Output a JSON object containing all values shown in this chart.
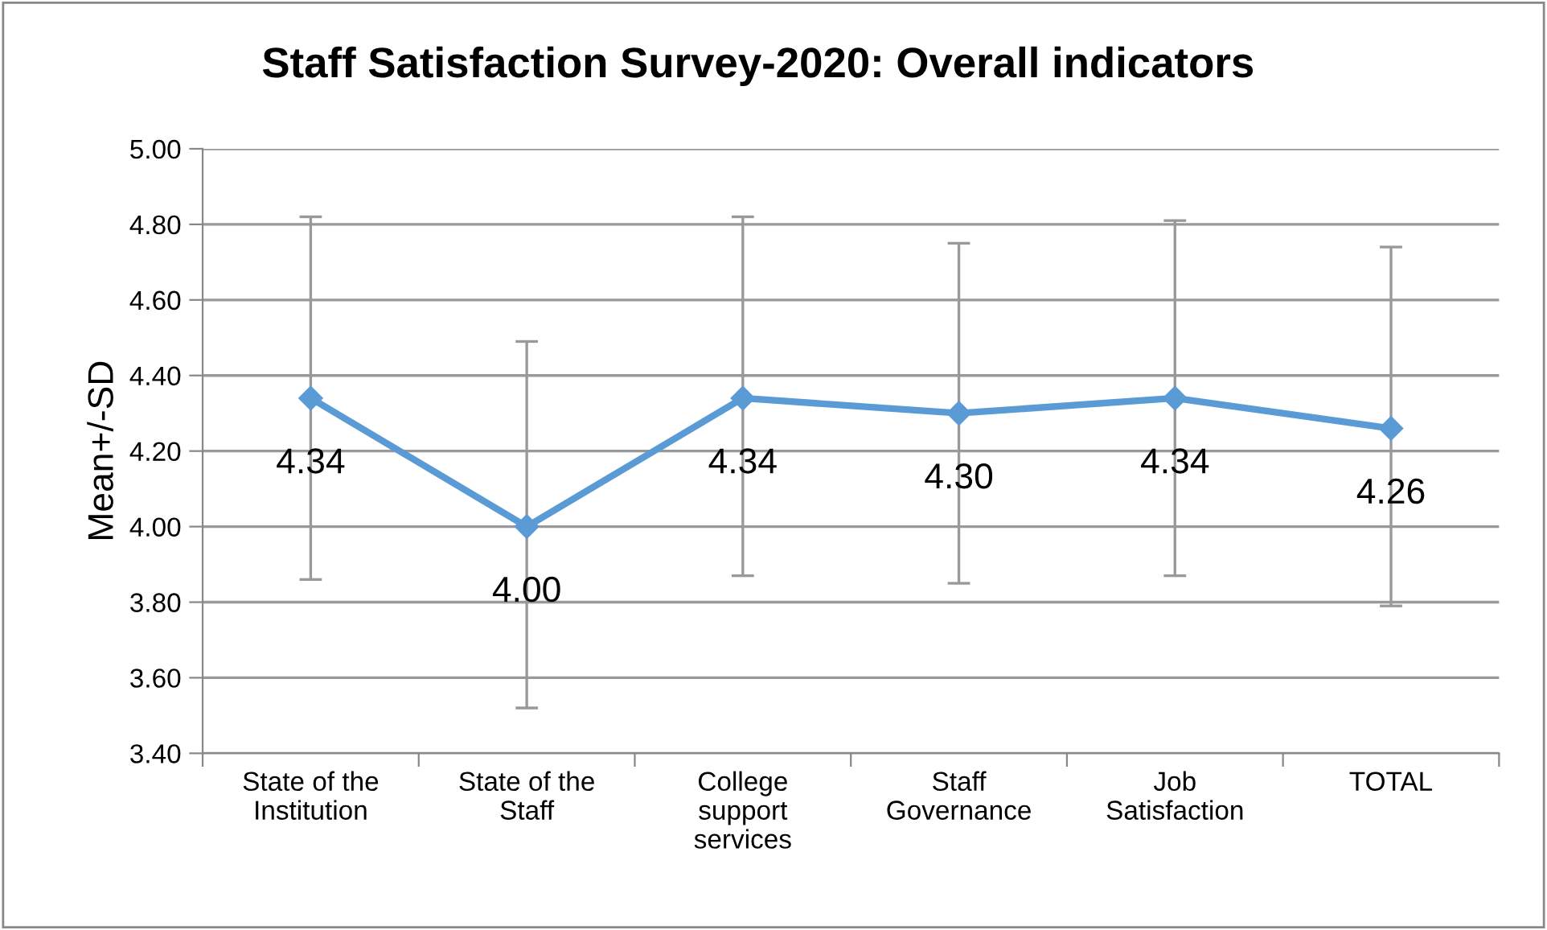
{
  "chart_data": {
    "type": "line",
    "title": "Staff Satisfaction Survey-2020: Overall indicators",
    "ylabel": "Mean+/-SD",
    "categories": [
      "State of the\nInstitution",
      "State of the\nStaff",
      "College\nsupport\nservices",
      "Staff\nGovernance",
      "Job\nSatisfaction",
      "TOTAL"
    ],
    "series": [
      {
        "color": "#5b9bd5",
        "values": [
          4.34,
          4.0,
          4.34,
          4.3,
          4.34,
          4.26
        ],
        "errors": [
          [
            3.86,
            4.82
          ],
          [
            3.52,
            4.49
          ],
          [
            3.87,
            4.82
          ],
          [
            3.85,
            4.75
          ],
          [
            3.87,
            4.81
          ],
          [
            3.79,
            4.74
          ]
        ]
      }
    ],
    "value_labels": [
      "4.34",
      "4.00",
      "4.34",
      "4.30",
      "4.34",
      "4.26"
    ],
    "ylim": [
      3.4,
      5.0
    ],
    "yticks": [
      {
        "value": 3.4,
        "label": "3.40"
      },
      {
        "value": 3.6,
        "label": "3.60"
      },
      {
        "value": 3.8,
        "label": "3.80"
      },
      {
        "value": 4.0,
        "label": "4.00"
      },
      {
        "value": 4.2,
        "label": "4.20"
      },
      {
        "value": 4.4,
        "label": "4.40"
      },
      {
        "value": 4.6,
        "label": "4.60"
      },
      {
        "value": 4.8,
        "label": "4.80"
      },
      {
        "value": 5.0,
        "label": "5.00"
      }
    ],
    "grid": "y",
    "marker": "diamond",
    "line_style": "solid",
    "legend": false
  }
}
